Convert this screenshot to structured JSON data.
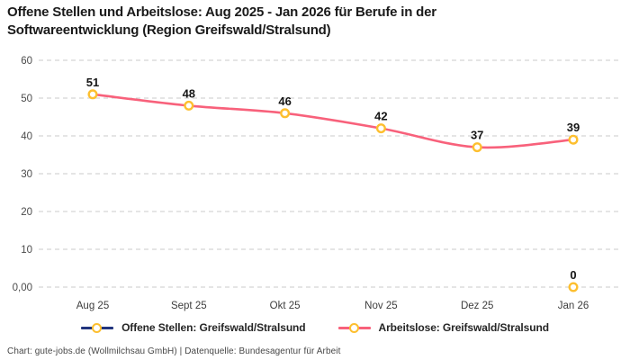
{
  "chart_data": {
    "type": "line",
    "title": "Offene Stellen und Arbeitslose: Aug 2025 - Jan 2026 für Berufe in der Softwareentwicklung (Region Greifswald/Stralsund)",
    "categories": [
      "Aug 25",
      "Sept 25",
      "Okt 25",
      "Nov 25",
      "Dez 25",
      "Jan 26"
    ],
    "series": [
      {
        "name": "Offene Stellen: Greifswald/Stralsund",
        "color": "#22357e",
        "values": [
          null,
          null,
          null,
          null,
          null,
          0
        ]
      },
      {
        "name": "Arbeitslose: Greifswald/Stralsund",
        "color": "#f8617b",
        "values": [
          51,
          48,
          46,
          42,
          37,
          39
        ]
      }
    ],
    "marker": {
      "ring_color": "#fdbf2f",
      "fill": "#ffffff"
    },
    "yticks": [
      {
        "value": 0,
        "label": "0,00"
      },
      {
        "value": 10,
        "label": "10"
      },
      {
        "value": 20,
        "label": "20"
      },
      {
        "value": 30,
        "label": "30"
      },
      {
        "value": 40,
        "label": "40"
      },
      {
        "value": 50,
        "label": "50"
      },
      {
        "value": 60,
        "label": "60"
      }
    ],
    "ylim": [
      0,
      60
    ],
    "grid": "horizontal-dashed",
    "grid_color": "#cbcbcb",
    "tick_text_color": "#4b4b4b",
    "value_label_color": "#161616",
    "legend_position": "bottom"
  },
  "footer": {
    "text": "Chart: gute-jobs.de (Wollmilchsau GmbH) | Datenquelle: Bundesagentur für Arbeit"
  }
}
